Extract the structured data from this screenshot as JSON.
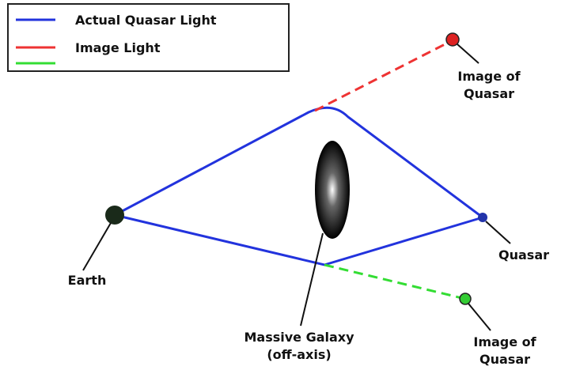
{
  "legend": [
    {
      "label": "Actual Quasar Light"
    },
    {
      "label": "Image Light"
    }
  ],
  "nodes": {
    "earth": {
      "lines": [
        "Earth"
      ]
    },
    "quasar": {
      "lines": [
        "Quasar"
      ]
    },
    "galaxy": {
      "lines": [
        "Massive Galaxy",
        "(off-axis)"
      ]
    },
    "image_upper": {
      "lines": [
        "Image of",
        "Quasar"
      ]
    },
    "image_lower": {
      "lines": [
        "Image of",
        "Quasar"
      ]
    }
  }
}
